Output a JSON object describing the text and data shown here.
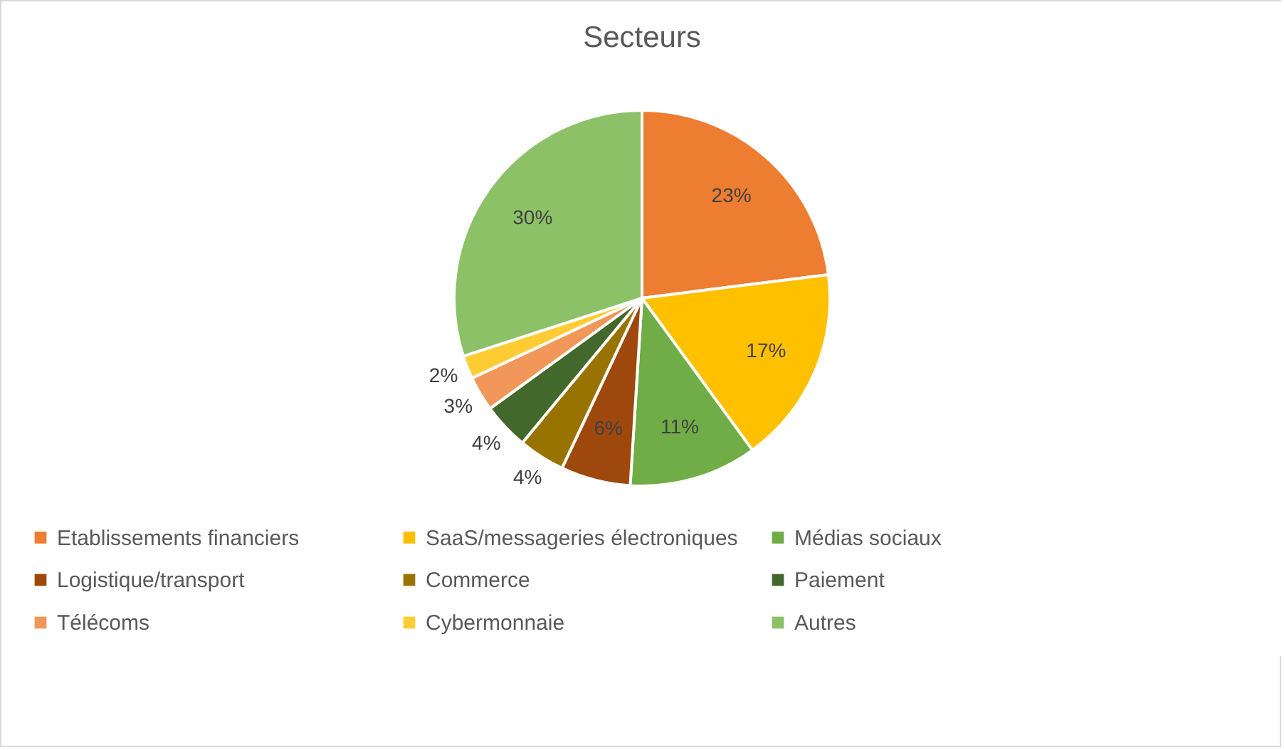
{
  "chart_data": {
    "type": "pie",
    "title": "Secteurs",
    "categories": [
      "Etablissements financiers",
      "SaaS/messageries électroniques",
      "Médias sociaux",
      "Logistique/transport",
      "Commerce",
      "Paiement",
      "Télécoms",
      "Cybermonnaie",
      "Autres"
    ],
    "values": [
      23,
      17,
      11,
      6,
      4,
      4,
      3,
      2,
      30
    ],
    "colors": [
      "#ed7d31",
      "#ffc000",
      "#70ad47",
      "#9e480e",
      "#997300",
      "#43682b",
      "#f1975a",
      "#ffcd33",
      "#8cc168"
    ],
    "value_labels": [
      "23%",
      "17%",
      "11%",
      "6%",
      "4%",
      "4%",
      "3%",
      "2%",
      "30%"
    ],
    "legend": "bottom"
  }
}
